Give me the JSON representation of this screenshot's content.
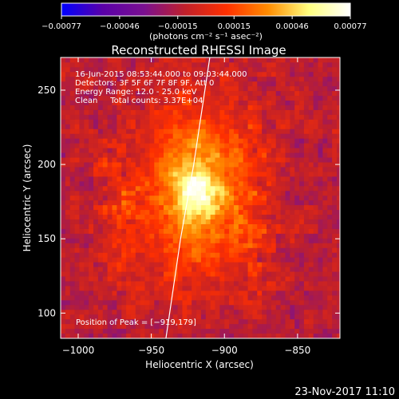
{
  "chart_data": {
    "type": "heatmap",
    "title": "Reconstructed RHESSI Image",
    "xlabel": "Heliocentric X (arcsec)",
    "ylabel": "Heliocentric Y (arcsec)",
    "xlim": [
      -1012,
      -821
    ],
    "ylim": [
      83,
      272
    ],
    "x_ticks": [
      -1000,
      -950,
      -900,
      -850
    ],
    "x_tick_labels": [
      "−1000",
      "−950",
      "−900",
      "−850"
    ],
    "y_ticks": [
      100,
      150,
      200,
      250
    ],
    "y_tick_labels": [
      "100",
      "150",
      "200",
      "250"
    ],
    "colorbar": {
      "min": -0.00077,
      "max": 0.00077,
      "ticks": [
        -0.00077,
        -0.00046,
        -0.00015,
        0.00015,
        0.00046,
        0.00077
      ],
      "tick_labels": [
        "−0.00077",
        "−0.00046",
        "−0.00015",
        "0.00015",
        "0.00046",
        "0.00077"
      ],
      "units_label": "(photons cm⁻² s⁻¹ asec⁻²)"
    },
    "annotations": [
      "16-Jun-2015 08:53:44.000 to 09:03:44.000",
      "Detectors: 3F 5F 6F 7F 8F 9F, Att 0",
      "Energy Range: 12.0 - 25.0 keV",
      "Clean     Total counts: 3.37E+04"
    ],
    "peak_label": "Position of Peak = [−919,179]",
    "peak_position": [
      -919,
      179
    ],
    "limb_curve": [
      [
        -940,
        83
      ],
      [
        -930,
        150
      ],
      [
        -921,
        200
      ],
      [
        -910,
        272
      ]
    ],
    "colors": {
      "colorbar_stops": [
        "#0000ff",
        "#5a00a8",
        "#7a1090",
        "#c0202a",
        "#ff3000",
        "#ff8c00",
        "#ffff80",
        "#ffffff"
      ],
      "background": "#000000",
      "limb": "#ffffff"
    }
  },
  "footer": {
    "timestamp": "23-Nov-2017 11:10"
  }
}
